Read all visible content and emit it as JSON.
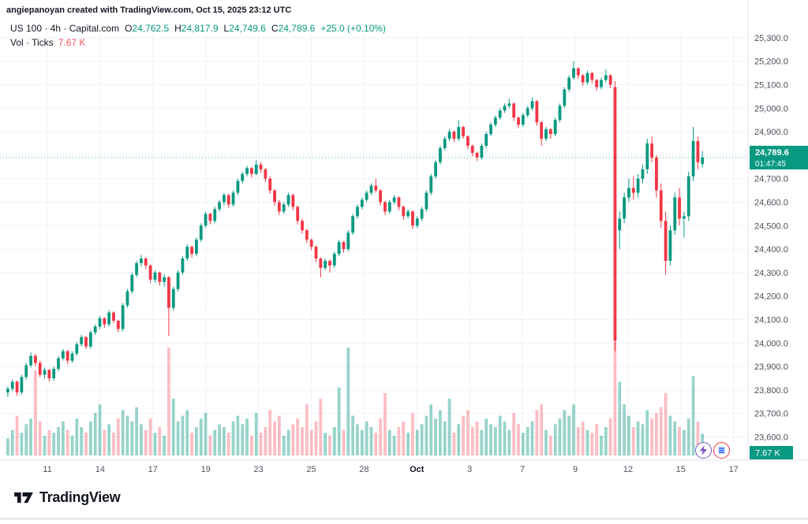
{
  "watermark": "angiepanoyan created with TradingView.com, Oct 15, 2025 23:12 UTC",
  "legend": {
    "title": "US 100 · 4h · Capital.com",
    "ohlc": {
      "o_label": "O",
      "o": "24,762.5",
      "h_label": "H",
      "h": "24,817.9",
      "l_label": "L",
      "l": "24,749.6",
      "c_label": "C",
      "c": "24,789.6",
      "change": "+25.0 (+0.10%)"
    },
    "volume_label": "Vol · Ticks",
    "volume_value": "7.67 K"
  },
  "footer": {
    "logo_text": "TradingView"
  },
  "chart_data": {
    "type": "candlestick",
    "title": "US 100 · 4h · Capital.com",
    "symbol": "US 100",
    "interval": "4h",
    "provider": "Capital.com",
    "ylim": [
      23590,
      25340
    ],
    "price_step": 100,
    "grid": true,
    "legend_position": "top-left",
    "up_color": "#089981",
    "down_color": "#f23645",
    "volume": {
      "unit": "Ticks",
      "up_color": "rgba(8,153,129,0.42)",
      "down_color": "rgba(242,54,69,0.32)"
    },
    "last_price": {
      "value": "24,789.6",
      "countdown": "01:47:45",
      "volume_badge": "7.67 K"
    },
    "y_ticks": [
      "25,300.0",
      "25,200.0",
      "25,100.0",
      "25,000.0",
      "24,900.0",
      "24,800.0",
      "24,700.0",
      "24,600.0",
      "24,500.0",
      "24,400.0",
      "24,300.0",
      "24,200.0",
      "24,100.0",
      "24,000.0",
      "23,900.0",
      "23,800.0",
      "23,700.0",
      "23,600.0"
    ],
    "x_ticks": [
      "11",
      "14",
      "17",
      "19",
      "23",
      "25",
      "28",
      "Oct",
      "3",
      "7",
      "9",
      "12",
      "15",
      "17"
    ],
    "series": [
      {
        "name": "US 100 4h",
        "columns": [
          "open",
          "high",
          "low",
          "close",
          "volume_k_ticks"
        ],
        "values": [
          [
            23790,
            23815,
            23770,
            23805,
            6
          ],
          [
            23805,
            23845,
            23795,
            23835,
            9
          ],
          [
            23835,
            23840,
            23775,
            23790,
            14
          ],
          [
            23790,
            23865,
            23780,
            23855,
            8
          ],
          [
            23855,
            23915,
            23845,
            23905,
            11
          ],
          [
            23905,
            23960,
            23895,
            23945,
            13
          ],
          [
            23945,
            23955,
            23900,
            23915,
            30
          ],
          [
            23915,
            23925,
            23855,
            23865,
            12
          ],
          [
            23865,
            23895,
            23850,
            23885,
            7
          ],
          [
            23885,
            23890,
            23835,
            23850,
            9
          ],
          [
            23850,
            23900,
            23840,
            23890,
            8
          ],
          [
            23890,
            23945,
            23880,
            23935,
            10
          ],
          [
            23935,
            23975,
            23925,
            23965,
            12
          ],
          [
            23965,
            23970,
            23910,
            23925,
            9
          ],
          [
            23925,
            23965,
            23915,
            23955,
            7
          ],
          [
            23955,
            24005,
            23945,
            23995,
            13
          ],
          [
            23995,
            24035,
            23985,
            24025,
            10
          ],
          [
            24025,
            24030,
            23975,
            23985,
            8
          ],
          [
            23985,
            24055,
            23975,
            24045,
            12
          ],
          [
            24045,
            24080,
            24035,
            24070,
            15
          ],
          [
            24070,
            24115,
            24060,
            24105,
            18
          ],
          [
            24105,
            24110,
            24065,
            24080,
            9
          ],
          [
            24080,
            24140,
            24070,
            24130,
            11
          ],
          [
            24130,
            24135,
            24085,
            24095,
            8
          ],
          [
            24095,
            24100,
            24045,
            24060,
            13
          ],
          [
            24060,
            24170,
            24050,
            24160,
            16
          ],
          [
            24160,
            24230,
            24150,
            24220,
            14
          ],
          [
            24220,
            24300,
            24210,
            24290,
            12
          ],
          [
            24290,
            24350,
            24280,
            24340,
            17
          ],
          [
            24340,
            24375,
            24325,
            24360,
            11
          ],
          [
            24360,
            24365,
            24315,
            24330,
            9
          ],
          [
            24330,
            24335,
            24255,
            24270,
            13
          ],
          [
            24270,
            24310,
            24255,
            24300,
            8
          ],
          [
            24300,
            24305,
            24245,
            24260,
            10
          ],
          [
            24260,
            24295,
            24240,
            24280,
            7
          ],
          [
            24280,
            24285,
            24030,
            24150,
            38
          ],
          [
            24150,
            24240,
            24140,
            24230,
            20
          ],
          [
            24230,
            24310,
            24220,
            24300,
            12
          ],
          [
            24300,
            24370,
            24290,
            24360,
            14
          ],
          [
            24360,
            24420,
            24350,
            24410,
            16
          ],
          [
            24410,
            24415,
            24365,
            24380,
            8
          ],
          [
            24380,
            24450,
            24370,
            24440,
            10
          ],
          [
            24440,
            24510,
            24430,
            24500,
            13
          ],
          [
            24500,
            24560,
            24490,
            24550,
            15
          ],
          [
            24550,
            24555,
            24505,
            24520,
            7
          ],
          [
            24520,
            24580,
            24510,
            24570,
            9
          ],
          [
            24570,
            24610,
            24560,
            24600,
            11
          ],
          [
            24600,
            24640,
            24585,
            24630,
            10
          ],
          [
            24630,
            24635,
            24575,
            24590,
            8
          ],
          [
            24590,
            24650,
            24580,
            24640,
            12
          ],
          [
            24640,
            24700,
            24630,
            24690,
            14
          ],
          [
            24690,
            24730,
            24680,
            24720,
            11
          ],
          [
            24720,
            24755,
            24710,
            24745,
            13
          ],
          [
            24745,
            24750,
            24705,
            24720,
            7
          ],
          [
            24720,
            24780,
            24715,
            24760,
            15
          ],
          [
            24760,
            24770,
            24725,
            24740,
            8
          ],
          [
            24740,
            24745,
            24685,
            24700,
            10
          ],
          [
            24700,
            24710,
            24635,
            24650,
            16
          ],
          [
            24650,
            24655,
            24585,
            24600,
            12
          ],
          [
            24600,
            24610,
            24545,
            24560,
            14
          ],
          [
            24560,
            24600,
            24550,
            24590,
            7
          ],
          [
            24590,
            24640,
            24580,
            24630,
            9
          ],
          [
            24630,
            24635,
            24565,
            24580,
            11
          ],
          [
            24580,
            24585,
            24505,
            24520,
            13
          ],
          [
            24520,
            24530,
            24465,
            24480,
            10
          ],
          [
            24480,
            24485,
            24425,
            24440,
            18
          ],
          [
            24440,
            24445,
            24395,
            24410,
            9
          ],
          [
            24410,
            24415,
            24345,
            24360,
            12
          ],
          [
            24360,
            24365,
            24280,
            24320,
            20
          ],
          [
            24320,
            24360,
            24310,
            24350,
            8
          ],
          [
            24350,
            24355,
            24300,
            24330,
            7
          ],
          [
            24330,
            24390,
            24320,
            24380,
            10
          ],
          [
            24380,
            24440,
            24370,
            24430,
            24
          ],
          [
            24430,
            24435,
            24385,
            24400,
            9
          ],
          [
            24400,
            24480,
            24390,
            24470,
            38
          ],
          [
            24470,
            24550,
            24460,
            24540,
            14
          ],
          [
            24540,
            24590,
            24530,
            24580,
            11
          ],
          [
            24580,
            24620,
            24570,
            24610,
            9
          ],
          [
            24610,
            24650,
            24600,
            24640,
            12
          ],
          [
            24640,
            24680,
            24630,
            24670,
            10
          ],
          [
            24670,
            24700,
            24640,
            24650,
            8
          ],
          [
            24650,
            24655,
            24585,
            24600,
            13
          ],
          [
            24600,
            24605,
            24545,
            24560,
            22
          ],
          [
            24560,
            24610,
            24550,
            24600,
            9
          ],
          [
            24600,
            24630,
            24590,
            24620,
            7
          ],
          [
            24620,
            24625,
            24565,
            24580,
            10
          ],
          [
            24580,
            24585,
            24525,
            24540,
            12
          ],
          [
            24540,
            24570,
            24530,
            24560,
            8
          ],
          [
            24560,
            24565,
            24485,
            24500,
            15
          ],
          [
            24500,
            24540,
            24490,
            24530,
            9
          ],
          [
            24530,
            24580,
            24520,
            24570,
            11
          ],
          [
            24570,
            24650,
            24560,
            24640,
            14
          ],
          [
            24640,
            24720,
            24630,
            24710,
            18
          ],
          [
            24710,
            24780,
            24700,
            24770,
            13
          ],
          [
            24770,
            24840,
            24760,
            24830,
            16
          ],
          [
            24830,
            24880,
            24820,
            24870,
            12
          ],
          [
            24870,
            24910,
            24860,
            24900,
            20
          ],
          [
            24900,
            24905,
            24855,
            24870,
            8
          ],
          [
            24870,
            24950,
            24860,
            24920,
            11
          ],
          [
            24920,
            24925,
            24870,
            24880,
            14
          ],
          [
            24880,
            24885,
            24825,
            24840,
            16
          ],
          [
            24840,
            24845,
            24795,
            24810,
            10
          ],
          [
            24810,
            24815,
            24775,
            24790,
            12
          ],
          [
            24790,
            24850,
            24780,
            24840,
            9
          ],
          [
            24840,
            24900,
            24830,
            24890,
            13
          ],
          [
            24890,
            24940,
            24880,
            24930,
            11
          ],
          [
            24930,
            24970,
            24920,
            24960,
            10
          ],
          [
            24960,
            25000,
            24950,
            24990,
            14
          ],
          [
            24990,
            25020,
            24980,
            25010,
            12
          ],
          [
            25010,
            25040,
            25000,
            25020,
            9
          ],
          [
            25020,
            25025,
            24945,
            24960,
            15
          ],
          [
            24960,
            24965,
            24915,
            24930,
            11
          ],
          [
            24930,
            24980,
            24920,
            24970,
            8
          ],
          [
            24970,
            25010,
            24960,
            25000,
            10
          ],
          [
            25000,
            25045,
            24990,
            25030,
            12
          ],
          [
            25030,
            25035,
            24925,
            24940,
            16
          ],
          [
            24940,
            24945,
            24840,
            24870,
            18
          ],
          [
            24870,
            24920,
            24860,
            24910,
            9
          ],
          [
            24910,
            24915,
            24870,
            24890,
            7
          ],
          [
            24890,
            24960,
            24880,
            24950,
            11
          ],
          [
            24950,
            25020,
            24940,
            25010,
            13
          ],
          [
            25010,
            25090,
            25000,
            25080,
            16
          ],
          [
            25080,
            25140,
            25070,
            25130,
            14
          ],
          [
            25130,
            25200,
            25120,
            25170,
            18
          ],
          [
            25170,
            25175,
            25125,
            25140,
            10
          ],
          [
            25140,
            25145,
            25095,
            25110,
            12
          ],
          [
            25110,
            25160,
            25100,
            25150,
            9
          ],
          [
            25150,
            25155,
            25105,
            25120,
            8
          ],
          [
            25120,
            25125,
            25075,
            25090,
            11
          ],
          [
            25090,
            25130,
            25080,
            25120,
            7
          ],
          [
            25120,
            25165,
            25110,
            25140,
            10
          ],
          [
            25140,
            25145,
            25085,
            25100,
            13
          ],
          [
            25090,
            25115,
            23965,
            24010,
            40
          ],
          [
            24480,
            24560,
            24400,
            24530,
            26
          ],
          [
            24530,
            24640,
            24510,
            24620,
            18
          ],
          [
            24620,
            24700,
            24600,
            24660,
            14
          ],
          [
            24660,
            24710,
            24610,
            24640,
            10
          ],
          [
            24640,
            24720,
            24620,
            24700,
            12
          ],
          [
            24700,
            24760,
            24680,
            24740,
            11
          ],
          [
            24740,
            24870,
            24720,
            24850,
            16
          ],
          [
            24850,
            24880,
            24770,
            24790,
            13
          ],
          [
            24790,
            24800,
            24620,
            24650,
            15
          ],
          [
            24650,
            24680,
            24490,
            24520,
            17
          ],
          [
            24520,
            24560,
            24290,
            24350,
            22
          ],
          [
            24350,
            24500,
            24330,
            24480,
            14
          ],
          [
            24480,
            24640,
            24460,
            24620,
            12
          ],
          [
            24620,
            24660,
            24500,
            24530,
            10
          ],
          [
            24530,
            24560,
            24450,
            24540,
            9
          ],
          [
            24540,
            24730,
            24520,
            24710,
            13
          ],
          [
            24710,
            24920,
            24690,
            24860,
            28
          ],
          [
            24860,
            24880,
            24740,
            24770,
            12
          ],
          [
            24762.5,
            24817.9,
            24749.6,
            24789.6,
            7.67
          ]
        ]
      }
    ]
  }
}
